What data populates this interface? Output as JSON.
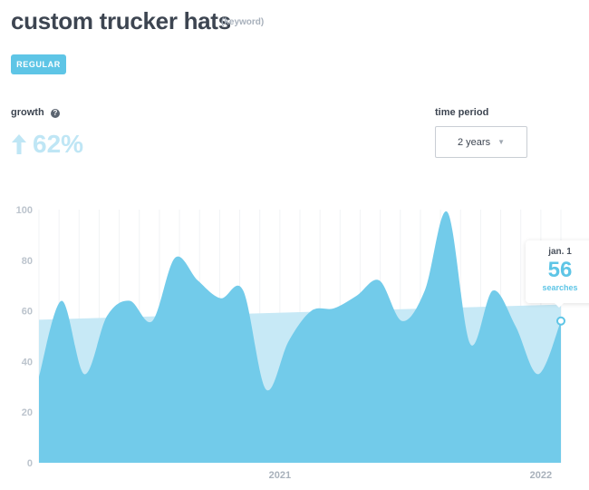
{
  "header": {
    "title": "custom trucker hats",
    "keyword_tag": "(keyword)",
    "type_button_label": "REGULAR"
  },
  "growth": {
    "label": "growth",
    "help_icon": "?",
    "value": "62%",
    "direction_icon": "up-arrow-icon"
  },
  "time_period": {
    "label": "time period",
    "selected": "2 years"
  },
  "tooltip": {
    "date": "jan. 1",
    "value": "56",
    "unit": "searches"
  },
  "colors": {
    "area": "#72cbea",
    "trend": "#c7e9f6",
    "accent": "#5ec5e6"
  },
  "chart_data": {
    "type": "area",
    "ylim": [
      0,
      100
    ],
    "y_ticks": [
      0,
      20,
      40,
      60,
      80,
      100
    ],
    "x_tick_labels": [
      "2021",
      "2022"
    ],
    "x_tick_positions": [
      12,
      25
    ],
    "x_range": [
      0,
      26
    ],
    "grid": "vertical",
    "series": [
      {
        "kind": "area",
        "values": [
          34,
          64,
          35,
          58,
          64,
          56,
          81,
          72,
          65,
          68,
          29,
          48,
          60,
          61,
          66,
          72,
          56,
          68,
          99,
          47,
          68,
          54,
          35,
          56
        ]
      },
      {
        "kind": "trend",
        "values": [
          56.5,
          62.5
        ]
      }
    ],
    "highlight": {
      "index": 23,
      "value": 56
    }
  }
}
